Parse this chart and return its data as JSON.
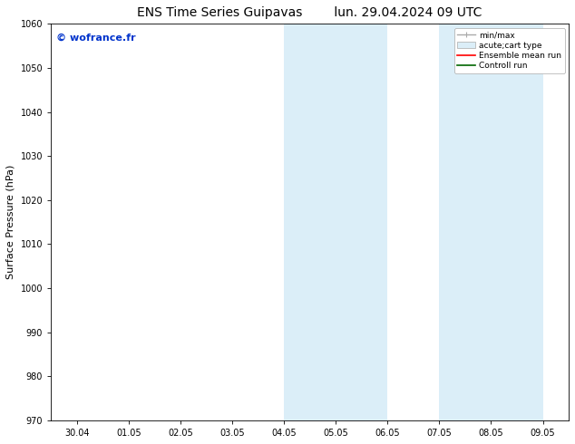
{
  "title_left": "ENS Time Series Guipavas",
  "title_right": "lun. 29.04.2024 09 UTC",
  "ylabel": "Surface Pressure (hPa)",
  "ylim": [
    970,
    1060
  ],
  "yticks": [
    970,
    980,
    990,
    1000,
    1010,
    1020,
    1030,
    1040,
    1050,
    1060
  ],
  "xtick_labels": [
    "30.04",
    "01.05",
    "02.05",
    "03.05",
    "04.05",
    "05.05",
    "06.05",
    "07.05",
    "08.05",
    "09.05"
  ],
  "xtick_positions": [
    0,
    1,
    2,
    3,
    4,
    5,
    6,
    7,
    8,
    9
  ],
  "xlim": [
    -0.5,
    9.5
  ],
  "shaded_regions": [
    {
      "xmin": 4.0,
      "xmax": 5.0,
      "color": "#dbeef8"
    },
    {
      "xmin": 5.0,
      "xmax": 6.0,
      "color": "#dbeef8"
    },
    {
      "xmin": 7.0,
      "xmax": 8.0,
      "color": "#dbeef8"
    },
    {
      "xmin": 8.0,
      "xmax": 9.0,
      "color": "#dbeef8"
    }
  ],
  "watermark_text": "© wofrance.fr",
  "watermark_color": "#0033cc",
  "background_color": "#ffffff",
  "legend_items": [
    {
      "label": "min/max",
      "color": "#aaaaaa",
      "lw": 1.0,
      "style": "minmax"
    },
    {
      "label": "acute;cart type",
      "color": "#dbeef8",
      "lw": 6,
      "style": "bar"
    },
    {
      "label": "Ensemble mean run",
      "color": "#ff0000",
      "lw": 1.2,
      "style": "line"
    },
    {
      "label": "Controll run",
      "color": "#006600",
      "lw": 1.2,
      "style": "line"
    }
  ],
  "title_fontsize": 10,
  "tick_fontsize": 7,
  "ylabel_fontsize": 8,
  "watermark_fontsize": 8
}
